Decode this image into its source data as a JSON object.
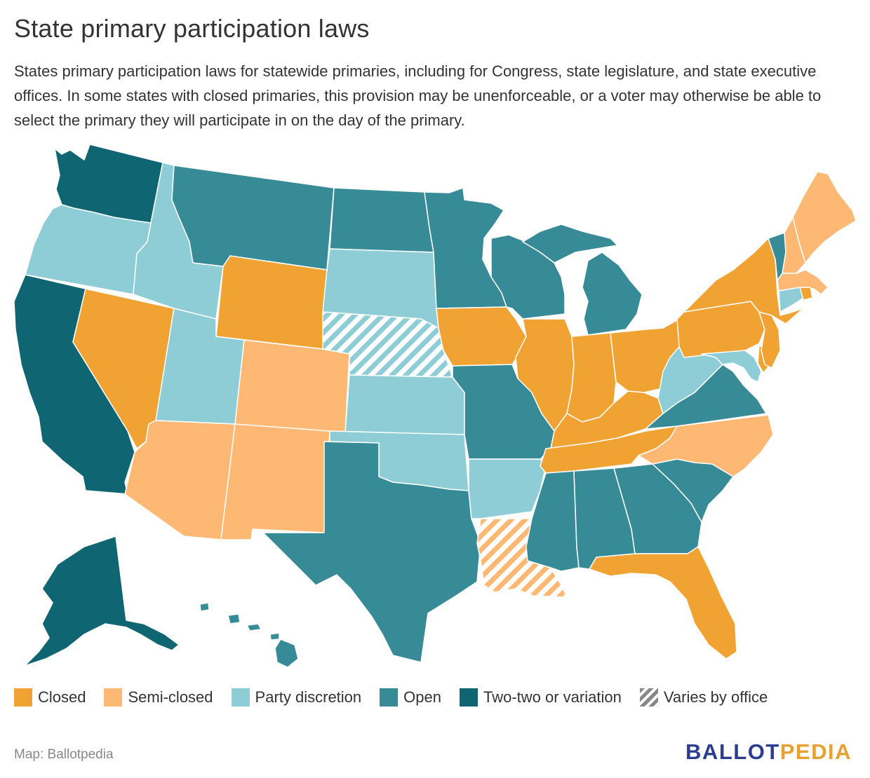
{
  "title": "State primary participation laws",
  "subtitle": "States primary participation laws for statewide primaries, including for Congress, state legislature, and state executive offices. In some states with closed primaries, this provision may be unenforceable, or a voter may otherwise be able to select the primary they will participate in on the day of the primary.",
  "colors": {
    "closed": "#f0a333",
    "semi_closed": "#fdb973",
    "party_discretion": "#8ecdd6",
    "open": "#378b97",
    "top_two": "#0f6672",
    "hatch_bg": "#ffffff"
  },
  "legend": [
    {
      "key": "closed",
      "label": "Closed"
    },
    {
      "key": "semi_closed",
      "label": "Semi-closed"
    },
    {
      "key": "party_discretion",
      "label": "Party discretion"
    },
    {
      "key": "open",
      "label": "Open"
    },
    {
      "key": "top_two",
      "label": "Two-two or variation"
    },
    {
      "key": "varies",
      "label": "Varies by office"
    }
  ],
  "states": {
    "WA": "top_two",
    "CA": "top_two",
    "AK": "top_two",
    "OR": "party_discretion",
    "ID": "party_discretion",
    "UT": "party_discretion",
    "SD": "party_discretion",
    "KS": "party_discretion",
    "OK": "party_discretion",
    "AR": "party_discretion",
    "WV": "party_discretion",
    "MD": "party_discretion",
    "CT": "party_discretion",
    "NV": "closed",
    "WY": "closed",
    "IA": "closed",
    "IL": "closed",
    "IN": "closed",
    "OH": "closed",
    "KY": "closed",
    "TN": "closed",
    "PA": "closed",
    "NY": "closed",
    "NJ": "closed",
    "DE": "closed",
    "FL": "closed",
    "RI": "closed",
    "AZ": "semi_closed",
    "CO": "semi_closed",
    "NM": "semi_closed",
    "NC": "semi_closed",
    "NH": "semi_closed",
    "ME": "semi_closed",
    "MA": "semi_closed",
    "MT": "open",
    "ND": "open",
    "MN": "open",
    "WI": "open",
    "MI": "open",
    "MO": "open",
    "TX": "open",
    "MS": "open",
    "AL": "open",
    "GA": "open",
    "SC": "open",
    "VA": "open",
    "VT": "open",
    "HI": "open",
    "NE": "varies:party_discretion",
    "LA": "varies:semi_closed"
  },
  "source": "Map: Ballotpedia",
  "brand": {
    "part1": "BALLOT",
    "part2": "PEDIA"
  }
}
